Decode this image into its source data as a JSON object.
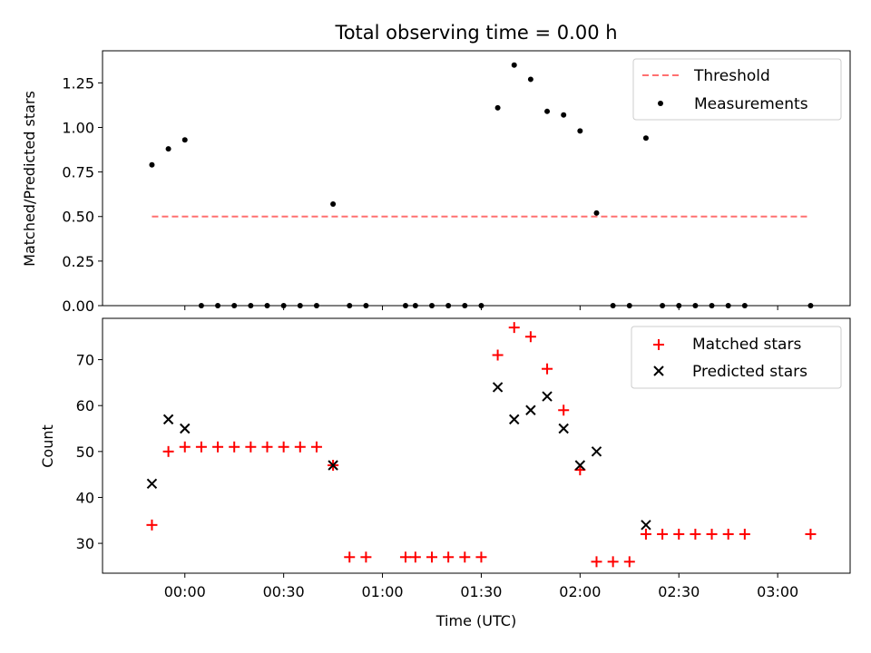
{
  "title": "Total observing time = 0.00 h",
  "colors": {
    "threshold": "#ff7070",
    "measurement": "#000000",
    "matched": "#ff0000",
    "predicted": "#000000"
  },
  "chart_data": [
    {
      "type": "scatter",
      "ylabel": "Matched/Predicted stars",
      "xlim": [
        "23:35",
        "03:22"
      ],
      "ylim": [
        0,
        1.43
      ],
      "yticks": [
        "0.00",
        "0.25",
        "0.50",
        "0.75",
        "1.00",
        "1.25"
      ],
      "legend_position": "top-right",
      "threshold": {
        "name": "Threshold",
        "value": 0.5,
        "x_range": [
          "23:50",
          "03:10"
        ]
      },
      "series": [
        {
          "name": "Measurements",
          "x": [
            "23:50",
            "23:55",
            "00:00",
            "00:05",
            "00:10",
            "00:15",
            "00:20",
            "00:25",
            "00:30",
            "00:35",
            "00:40",
            "00:45",
            "00:50",
            "00:55",
            "01:07",
            "01:10",
            "01:15",
            "01:20",
            "01:25",
            "01:30",
            "01:35",
            "01:40",
            "01:45",
            "01:50",
            "01:55",
            "02:00",
            "02:05",
            "02:10",
            "02:15",
            "02:20",
            "02:25",
            "02:30",
            "02:35",
            "02:40",
            "02:45",
            "02:50",
            "03:10"
          ],
          "y": [
            0.79,
            0.88,
            0.93,
            0,
            0,
            0,
            0,
            0,
            0,
            0,
            0,
            0.57,
            0,
            0,
            0,
            0,
            0,
            0,
            0,
            0,
            1.11,
            1.35,
            1.27,
            1.09,
            1.07,
            0.98,
            0.52,
            0,
            0,
            0.94,
            0,
            0,
            0,
            0,
            0,
            0,
            0
          ]
        }
      ]
    },
    {
      "type": "scatter",
      "xlabel": "Time (UTC)",
      "ylabel": "Count",
      "xlim": [
        "23:35",
        "03:22"
      ],
      "ylim": [
        23.5,
        79
      ],
      "yticks": [
        "30",
        "40",
        "50",
        "60",
        "70"
      ],
      "xticks": [
        "00:00",
        "00:30",
        "01:00",
        "01:30",
        "02:00",
        "02:30",
        "03:00"
      ],
      "legend_position": "top-right",
      "series": [
        {
          "name": "Matched stars",
          "x": [
            "23:50",
            "23:55",
            "00:00",
            "00:05",
            "00:10",
            "00:15",
            "00:20",
            "00:25",
            "00:30",
            "00:35",
            "00:40",
            "00:45",
            "00:50",
            "00:55",
            "01:07",
            "01:10",
            "01:15",
            "01:20",
            "01:25",
            "01:30",
            "01:35",
            "01:40",
            "01:45",
            "01:50",
            "01:55",
            "02:00",
            "02:05",
            "02:10",
            "02:15",
            "02:20",
            "02:25",
            "02:30",
            "02:35",
            "02:40",
            "02:45",
            "02:50",
            "03:10"
          ],
          "y": [
            34,
            50,
            51,
            51,
            51,
            51,
            51,
            51,
            51,
            51,
            51,
            47,
            27,
            27,
            27,
            27,
            27,
            27,
            27,
            27,
            71,
            77,
            75,
            68,
            59,
            46,
            26,
            26,
            26,
            32,
            32,
            32,
            32,
            32,
            32,
            32,
            32
          ]
        },
        {
          "name": "Predicted stars",
          "x": [
            "23:50",
            "23:55",
            "00:00",
            "00:45",
            "01:35",
            "01:40",
            "01:45",
            "01:50",
            "01:55",
            "02:00",
            "02:05",
            "02:20"
          ],
          "y": [
            43,
            57,
            55,
            47,
            64,
            57,
            59,
            62,
            55,
            47,
            50,
            34
          ]
        }
      ]
    }
  ]
}
